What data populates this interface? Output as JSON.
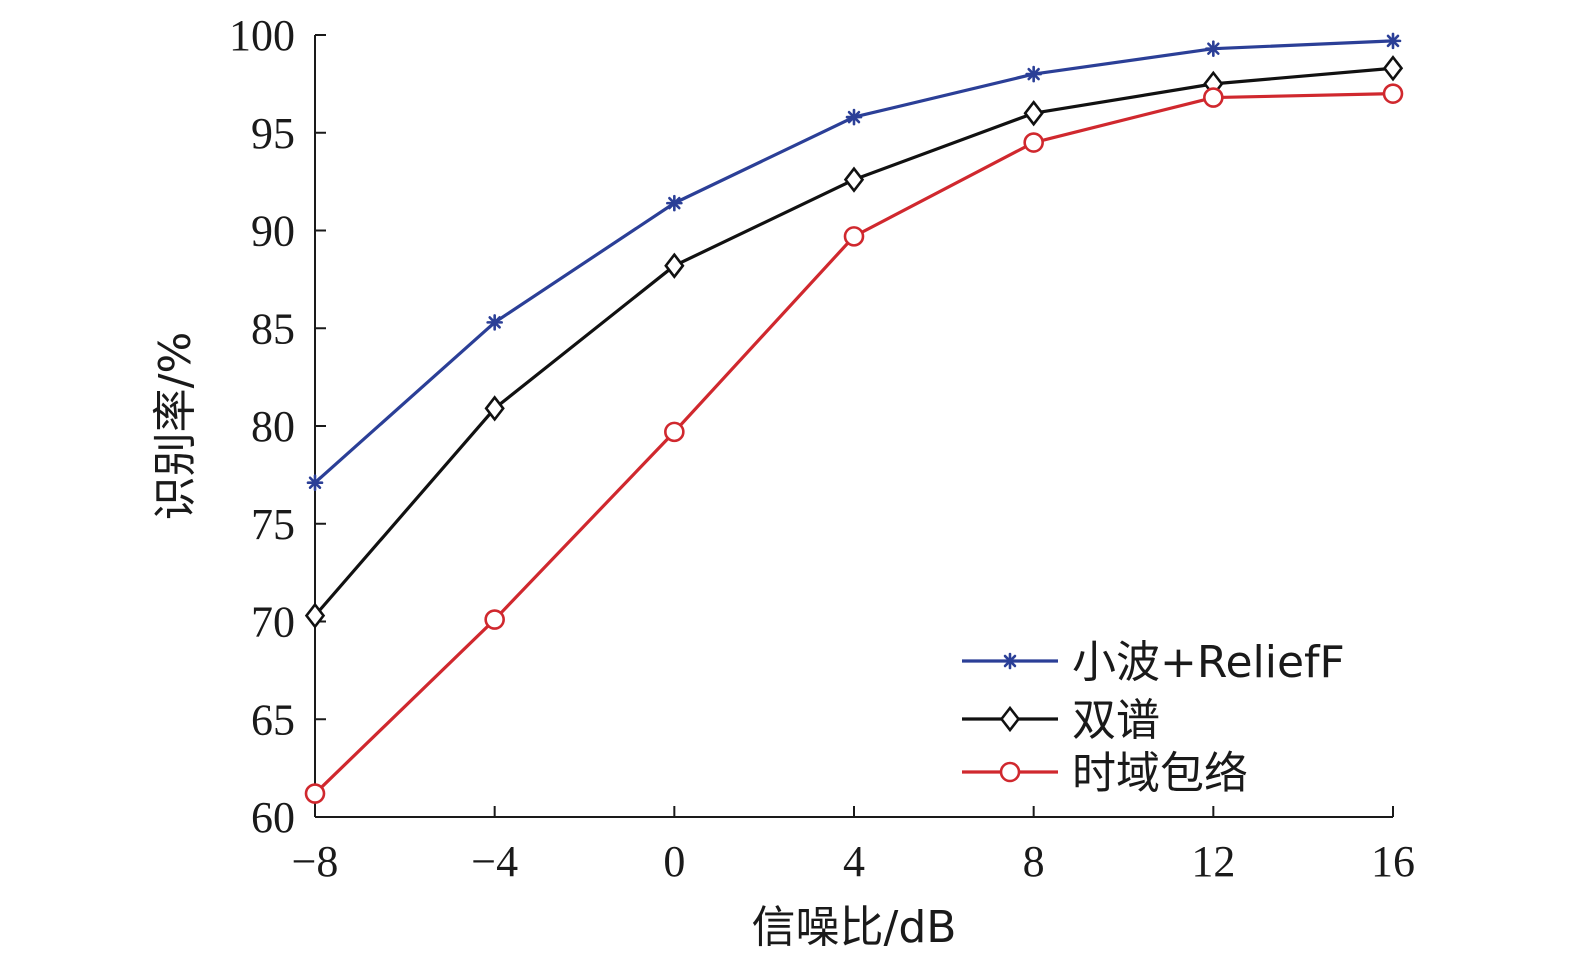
{
  "chart_data": {
    "type": "line",
    "xlabel": "信噪比/dB",
    "ylabel": "识别率/%",
    "x": [
      -8,
      -4,
      0,
      4,
      8,
      12,
      16
    ],
    "x_tick_labels": [
      "−8",
      "−4",
      "0",
      "4",
      "8",
      "12",
      "16"
    ],
    "xlim": [
      -8,
      16
    ],
    "ylim": [
      60,
      100
    ],
    "y_ticks": [
      60,
      65,
      70,
      75,
      80,
      85,
      90,
      95,
      100
    ],
    "grid": false,
    "legend_position": "bottom-right",
    "series": [
      {
        "name": "小波+ReliefF",
        "color": "#2b3f97",
        "marker": "asterisk",
        "values": [
          77.1,
          85.3,
          91.4,
          95.8,
          98.0,
          99.3,
          99.7
        ]
      },
      {
        "name": "双谱",
        "color": "#111111",
        "marker": "diamond",
        "values": [
          70.3,
          80.9,
          88.2,
          92.6,
          96.0,
          97.5,
          98.3
        ]
      },
      {
        "name": "时域包络",
        "color": "#d0282e",
        "marker": "circle",
        "values": [
          61.2,
          70.1,
          79.7,
          89.7,
          94.5,
          96.8,
          97.0
        ]
      }
    ]
  }
}
